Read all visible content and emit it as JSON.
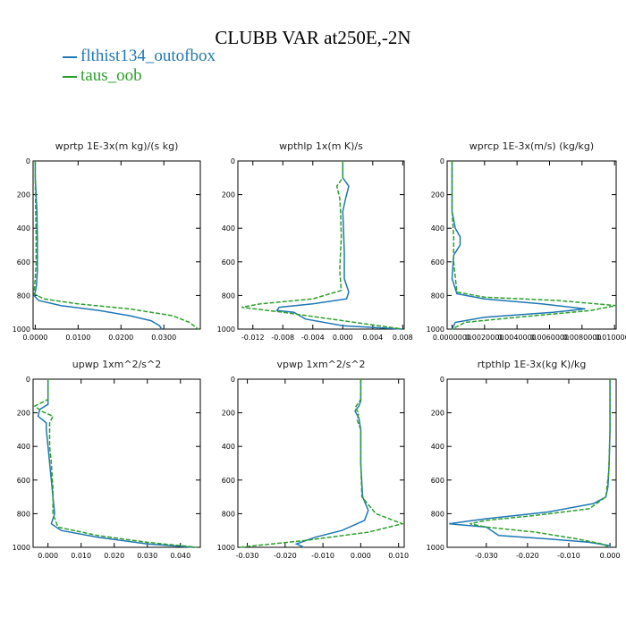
{
  "title": "CLUBB VAR at250E,-2N",
  "legend": [
    {
      "label": "flthist134_outofbox",
      "color": "#1f77b4"
    },
    {
      "label": "taus_oob",
      "color": "#2ca02c"
    }
  ],
  "chart_data": [
    {
      "type": "line",
      "title": "wprtp  1E-3x(m kg)/(s kg)",
      "xlim": [
        -0.0005,
        0.0385
      ],
      "ylim": [
        0,
        1000
      ],
      "y_inverted": true,
      "xticks": [
        0.0,
        0.01,
        0.02,
        0.03
      ],
      "xtick_labels": [
        "0.0000",
        "0.0100",
        "0.0200",
        "0.0300"
      ],
      "yticks": [
        0,
        200,
        400,
        600,
        800,
        1000
      ],
      "ytick_labels": [
        "0",
        "200",
        "400",
        "600",
        "800",
        "1000"
      ],
      "series": [
        {
          "name": "flthist134_outofbox",
          "x": [
            0.0,
            0.0,
            0.0004,
            0.0005,
            0.0005,
            0.0005,
            0.0003,
            0.0,
            -0.0003,
            0.0008,
            0.006,
            0.015,
            0.022,
            0.027,
            0.029,
            0.0295
          ],
          "y": [
            0,
            100,
            300,
            450,
            550,
            650,
            740,
            780,
            800,
            830,
            860,
            890,
            920,
            950,
            980,
            1000
          ]
        },
        {
          "name": "taus_oob",
          "x": [
            0.0,
            0.0,
            0.0001,
            0.0002,
            0.0002,
            0.0,
            -0.0003,
            0.002,
            0.01,
            0.022,
            0.032,
            0.036,
            0.038
          ],
          "y": [
            0,
            100,
            300,
            450,
            600,
            700,
            790,
            820,
            850,
            880,
            920,
            960,
            1000
          ]
        }
      ]
    },
    {
      "type": "line",
      "title": "wpthlp  1x(m K)/s",
      "xlim": [
        -0.014,
        0.0082
      ],
      "ylim": [
        0,
        1000
      ],
      "y_inverted": true,
      "xticks": [
        -0.012,
        -0.008,
        -0.004,
        0.0,
        0.004,
        0.008
      ],
      "xtick_labels": [
        "-0.012",
        "-0.008",
        "-0.004",
        "0.000",
        "0.004",
        "0.008"
      ],
      "yticks": [
        0,
        200,
        400,
        600,
        800,
        1000
      ],
      "ytick_labels": [
        "0",
        "200",
        "400",
        "600",
        "800",
        "1000"
      ],
      "series": [
        {
          "name": "flthist134_outofbox",
          "x": [
            0.0,
            0.0,
            0.0008,
            0.0004,
            0.0,
            0.0001,
            0.0002,
            0.0002,
            0.0008,
            0.0005,
            -0.004,
            -0.0085,
            -0.0088,
            -0.0065,
            -0.005,
            0.0,
            0.008
          ],
          "y": [
            0,
            100,
            150,
            220,
            300,
            400,
            550,
            700,
            780,
            820,
            850,
            870,
            890,
            900,
            940,
            980,
            1000
          ]
        },
        {
          "name": "taus_oob",
          "x": [
            0.0,
            0.0,
            -0.0008,
            -0.0004,
            -0.0003,
            -0.0002,
            -0.0004,
            -0.0002,
            -0.004,
            -0.011,
            -0.0135,
            -0.008,
            0.0,
            0.008
          ],
          "y": [
            0,
            100,
            150,
            220,
            300,
            450,
            650,
            770,
            820,
            850,
            870,
            900,
            950,
            1000
          ]
        }
      ]
    },
    {
      "type": "line",
      "title": "wprcp  1E-3x(m/s) (kg/kg)",
      "xlim": [
        -0.0003,
        0.0101
      ],
      "ylim": [
        0,
        1000
      ],
      "y_inverted": true,
      "xticks": [
        0.0,
        0.002,
        0.004,
        0.006,
        0.008,
        0.01
      ],
      "xtick_labels": [
        "0.0000000",
        "0.0020000",
        "0.0040000",
        "0.0060000",
        "0.0080000",
        "0.0100000"
      ],
      "yticks": [
        0,
        200,
        400,
        600,
        800,
        1000
      ],
      "ytick_labels": [
        "0",
        "200",
        "400",
        "600",
        "800",
        "1000"
      ],
      "series": [
        {
          "name": "flthist134_outofbox",
          "x": [
            0.0,
            0.0,
            0.0002,
            0.0005,
            0.0005,
            0.0001,
            0.0,
            0.0003,
            0.002,
            0.0055,
            0.0082,
            0.0062,
            0.002,
            0.0002,
            0.0
          ],
          "y": [
            0,
            300,
            400,
            450,
            500,
            560,
            700,
            790,
            820,
            850,
            880,
            900,
            930,
            960,
            1000
          ]
        },
        {
          "name": "taus_oob",
          "x": [
            0.0,
            0.0,
            0.0001,
            0.0001,
            0.0003,
            0.002,
            0.0065,
            0.0101,
            0.0085,
            0.004,
            0.0008,
            0.0
          ],
          "y": [
            0,
            300,
            450,
            600,
            780,
            810,
            830,
            860,
            890,
            930,
            960,
            1000
          ]
        }
      ]
    },
    {
      "type": "line",
      "title": "upwp  1xm^2/s^2",
      "xlim": [
        -0.0045,
        0.046
      ],
      "ylim": [
        0,
        1000
      ],
      "y_inverted": true,
      "xticks": [
        0.0,
        0.01,
        0.02,
        0.03,
        0.04
      ],
      "xtick_labels": [
        "0.000",
        "0.010",
        "0.020",
        "0.030",
        "0.040"
      ],
      "yticks": [
        0,
        200,
        400,
        600,
        800,
        1000
      ],
      "ytick_labels": [
        "0",
        "200",
        "400",
        "600",
        "800",
        "1000"
      ],
      "series": [
        {
          "name": "flthist134_outofbox",
          "x": [
            0.0,
            0.0,
            -0.0025,
            -0.003,
            -0.0005,
            -0.0005,
            0.0,
            0.0005,
            0.001,
            0.0015,
            0.002,
            0.001,
            0.004,
            0.015,
            0.03,
            0.044
          ],
          "y": [
            0,
            150,
            180,
            220,
            260,
            300,
            400,
            500,
            600,
            700,
            800,
            860,
            900,
            940,
            980,
            1000
          ]
        },
        {
          "name": "taus_oob",
          "x": [
            0.0,
            0.0,
            -0.004,
            -0.002,
            0.0015,
            0.0005,
            0.0005,
            0.001,
            0.0015,
            0.0015,
            0.003,
            0.015,
            0.03,
            0.045
          ],
          "y": [
            0,
            120,
            160,
            190,
            220,
            260,
            400,
            500,
            650,
            800,
            880,
            930,
            970,
            1000
          ]
        }
      ]
    },
    {
      "type": "line",
      "title": "vpwp  1xm^2/s^2",
      "xlim": [
        -0.0325,
        0.0115
      ],
      "ylim": [
        0,
        1000
      ],
      "y_inverted": true,
      "xticks": [
        -0.03,
        -0.02,
        -0.01,
        0.0,
        0.01
      ],
      "xtick_labels": [
        "-0.030",
        "-0.020",
        "-0.010",
        "0.000",
        "0.010"
      ],
      "yticks": [
        0,
        200,
        400,
        600,
        800,
        1000
      ],
      "ytick_labels": [
        "0",
        "200",
        "400",
        "600",
        "800",
        "1000"
      ],
      "series": [
        {
          "name": "flthist134_outofbox",
          "x": [
            0.0,
            0.0,
            -0.0005,
            -0.0015,
            -0.0005,
            0.0,
            0.0,
            0.0005,
            0.002,
            0.001,
            -0.005,
            -0.012,
            -0.017,
            -0.015
          ],
          "y": [
            0,
            130,
            160,
            190,
            230,
            300,
            500,
            700,
            780,
            840,
            900,
            940,
            980,
            1000
          ]
        },
        {
          "name": "taus_oob",
          "x": [
            0.0,
            0.0,
            -0.0015,
            -0.0005,
            -0.001,
            0.0,
            0.0,
            0.0003,
            0.004,
            0.011,
            0.002,
            -0.015,
            -0.032
          ],
          "y": [
            0,
            120,
            170,
            200,
            240,
            300,
            500,
            700,
            800,
            860,
            910,
            960,
            1000
          ]
        }
      ]
    },
    {
      "type": "line",
      "title": "rtpthlp  1E-3x(kg K)/kg",
      "xlim": [
        -0.0395,
        0.0015
      ],
      "ylim": [
        0,
        1000
      ],
      "y_inverted": true,
      "xticks": [
        -0.03,
        -0.02,
        -0.01,
        0.0
      ],
      "xtick_labels": [
        "-0.030",
        "-0.020",
        "-0.010",
        "0.000"
      ],
      "yticks": [
        0,
        200,
        400,
        600,
        800,
        1000
      ],
      "ytick_labels": [
        "0",
        "200",
        "400",
        "600",
        "800",
        "1000"
      ],
      "series": [
        {
          "name": "flthist134_outofbox",
          "x": [
            0.0,
            0.0,
            -0.0002,
            -0.0005,
            -0.001,
            -0.004,
            -0.015,
            -0.03,
            -0.039,
            -0.03,
            -0.027,
            -0.015,
            -0.005,
            0.0,
            0.0
          ],
          "y": [
            0,
            300,
            500,
            640,
            700,
            740,
            790,
            830,
            860,
            880,
            930,
            950,
            970,
            990,
            1000
          ]
        },
        {
          "name": "taus_oob",
          "x": [
            0.0,
            0.0,
            -0.0003,
            -0.001,
            -0.005,
            -0.018,
            -0.03,
            -0.034,
            -0.03,
            -0.018,
            -0.008,
            -0.002,
            0.0
          ],
          "y": [
            0,
            300,
            550,
            700,
            770,
            810,
            840,
            860,
            880,
            910,
            950,
            980,
            1000
          ]
        }
      ]
    }
  ]
}
